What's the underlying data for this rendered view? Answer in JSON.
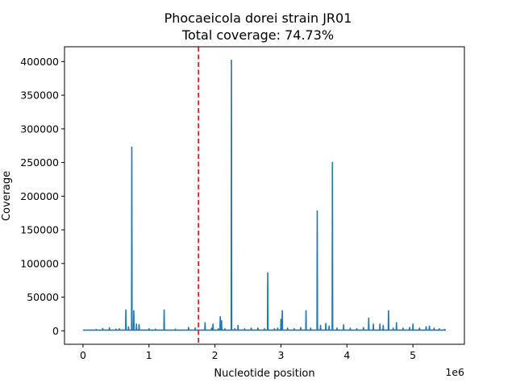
{
  "chart_data": {
    "type": "line",
    "title": "Phocaeicola dorei strain JR01",
    "subtitle": "Total coverage: 74.73%",
    "xlabel": "Nucleotide position",
    "ylabel": "Coverage",
    "x_offset_label": "1e6",
    "xlim": [
      -0.28,
      5.78
    ],
    "ylim": [
      -20000,
      422000
    ],
    "x_ticks": [
      0,
      1,
      2,
      3,
      4,
      5
    ],
    "x_tick_labels": [
      "0",
      "1",
      "2",
      "3",
      "4",
      "5"
    ],
    "y_ticks": [
      0,
      50000,
      100000,
      150000,
      200000,
      250000,
      300000,
      350000,
      400000
    ],
    "y_tick_labels": [
      "0",
      "50000",
      "100000",
      "150000",
      "200000",
      "250000",
      "300000",
      "350000",
      "400000"
    ],
    "grid": false,
    "legend": "none",
    "marker": {
      "x": 1.75,
      "style": "dashed",
      "color": "#d62728"
    },
    "series": [
      {
        "color": "#1f77b4",
        "x_start": 0,
        "x_end": 5.5,
        "baseline": 1000,
        "peaks": [
          [
            0.2,
            2000
          ],
          [
            0.3,
            3500
          ],
          [
            0.4,
            4500
          ],
          [
            0.5,
            2500
          ],
          [
            0.55,
            3000
          ],
          [
            0.65,
            31000
          ],
          [
            0.69,
            6000
          ],
          [
            0.74,
            273000
          ],
          [
            0.77,
            30000
          ],
          [
            0.81,
            10000
          ],
          [
            0.85,
            9500
          ],
          [
            1.0,
            3000
          ],
          [
            1.1,
            2500
          ],
          [
            1.23,
            31000
          ],
          [
            1.4,
            2500
          ],
          [
            1.6,
            5000
          ],
          [
            1.7,
            4000
          ],
          [
            1.85,
            12000
          ],
          [
            1.95,
            4000
          ],
          [
            1.97,
            10000
          ],
          [
            2.05,
            3000
          ],
          [
            2.08,
            21000
          ],
          [
            2.1,
            15000
          ],
          [
            2.15,
            3000
          ],
          [
            2.25,
            402000
          ],
          [
            2.3,
            3000
          ],
          [
            2.35,
            8000
          ],
          [
            2.45,
            3000
          ],
          [
            2.55,
            4000
          ],
          [
            2.65,
            4000
          ],
          [
            2.75,
            3000
          ],
          [
            2.8,
            86000
          ],
          [
            2.9,
            3000
          ],
          [
            2.95,
            4000
          ],
          [
            3.0,
            17000
          ],
          [
            3.02,
            30000
          ],
          [
            3.1,
            4000
          ],
          [
            3.2,
            3000
          ],
          [
            3.3,
            5000
          ],
          [
            3.38,
            30000
          ],
          [
            3.45,
            4000
          ],
          [
            3.55,
            178000
          ],
          [
            3.6,
            8000
          ],
          [
            3.68,
            11000
          ],
          [
            3.73,
            7000
          ],
          [
            3.78,
            250000
          ],
          [
            3.85,
            4000
          ],
          [
            3.95,
            9000
          ],
          [
            4.05,
            4000
          ],
          [
            4.15,
            3000
          ],
          [
            4.25,
            5000
          ],
          [
            4.33,
            19000
          ],
          [
            4.4,
            10000
          ],
          [
            4.5,
            10000
          ],
          [
            4.55,
            8000
          ],
          [
            4.63,
            30000
          ],
          [
            4.7,
            4000
          ],
          [
            4.75,
            12000
          ],
          [
            4.85,
            4000
          ],
          [
            4.95,
            5000
          ],
          [
            5.0,
            10000
          ],
          [
            5.1,
            4000
          ],
          [
            5.2,
            6000
          ],
          [
            5.25,
            7000
          ],
          [
            5.32,
            4000
          ],
          [
            5.4,
            3000
          ],
          [
            5.48,
            2000
          ]
        ]
      }
    ]
  }
}
